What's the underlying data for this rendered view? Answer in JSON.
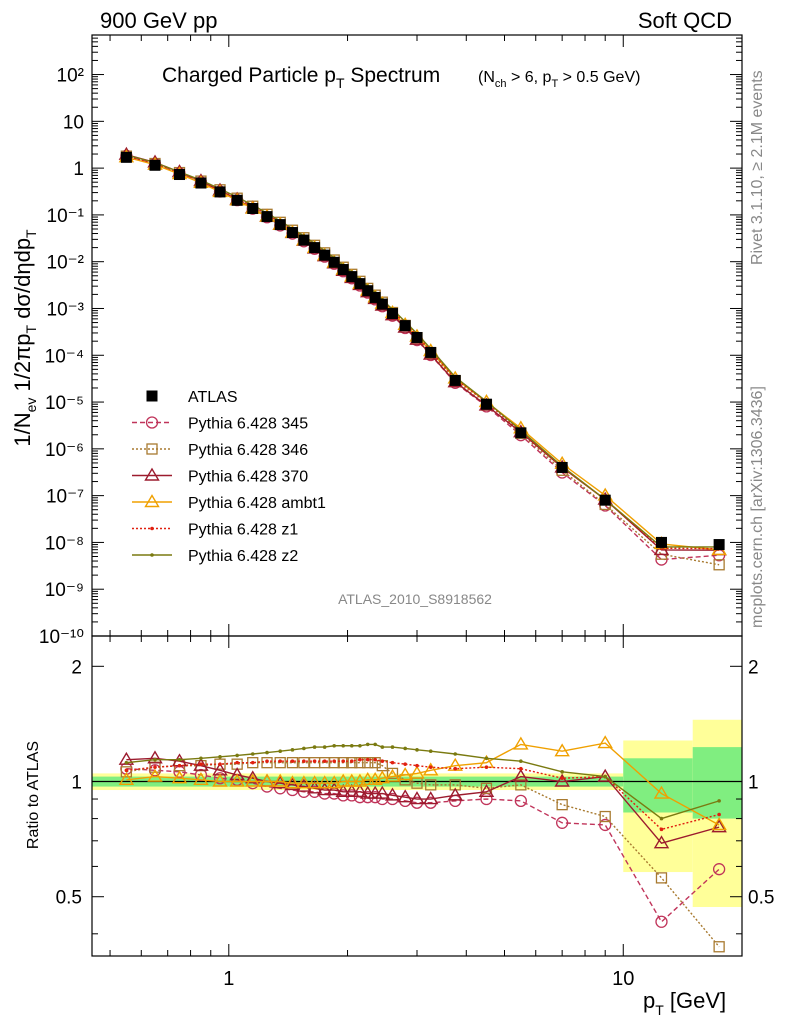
{
  "header": {
    "left": "900 GeV pp",
    "right": "Soft QCD"
  },
  "title": {
    "main_prefix": "Charged Particle p",
    "main_sub": "T",
    "main_suffix": " Spectrum",
    "cut_text": "(N",
    "cut_sub1": "ch",
    "cut_mid": " > 6, p",
    "cut_sub2": "T",
    "cut_end": " > 0.5 GeV)"
  },
  "side_labels": {
    "rivet": "Rivet 3.1.10, ≥ 2.1M events",
    "mcplots": "mcplots.cern.ch [arXiv:1306.3436]"
  },
  "watermark": "ATLAS_2010_S8918562",
  "axes": {
    "ylabel_top": "1/N_ev 1/2πp_T dσ/dηdp_T",
    "ylabel_bottom": "Ratio to ATLAS",
    "xlabel": "p_T  [GeV]",
    "x_ticks": [
      "1",
      "10"
    ],
    "y_ticks_top": [
      "10²",
      "10",
      "1",
      "10⁻¹",
      "10⁻²",
      "10⁻³",
      "10⁻⁴",
      "10⁻⁵",
      "10⁻⁶",
      "10⁻⁷",
      "10⁻⁸",
      "10⁻⁹",
      "10⁻¹⁰"
    ],
    "y_ticks_bottom": [
      "0.5",
      "1",
      "2"
    ]
  },
  "legend": [
    {
      "label": "ATLAS",
      "color": "#000000",
      "marker": "square-filled",
      "style": "none"
    },
    {
      "label": "Pythia 6.428 345",
      "color": "#c0345a",
      "marker": "circle",
      "style": "dashed"
    },
    {
      "label": "Pythia 6.428 346",
      "color": "#a87a30",
      "marker": "square",
      "style": "dotted"
    },
    {
      "label": "Pythia 6.428 370",
      "color": "#9c1b2e",
      "marker": "triangle",
      "style": "solid"
    },
    {
      "label": "Pythia 6.428 ambt1",
      "color": "#f0a000",
      "marker": "triangle",
      "style": "solid"
    },
    {
      "label": "Pythia 6.428 z1",
      "color": "#e02010",
      "marker": "dot",
      "style": "dotted"
    },
    {
      "label": "Pythia 6.428 z2",
      "color": "#7a7a10",
      "marker": "dot",
      "style": "solid"
    }
  ],
  "chart_data": {
    "type": "line",
    "x_scale": "log",
    "top_y_scale": "log",
    "xlim": [
      0.45,
      20
    ],
    "ylim_top": [
      1e-10,
      700
    ],
    "ylim_ratio": [
      0.35,
      2.4
    ],
    "x": [
      0.55,
      0.65,
      0.75,
      0.85,
      0.95,
      1.05,
      1.15,
      1.25,
      1.35,
      1.45,
      1.55,
      1.65,
      1.75,
      1.85,
      1.95,
      2.05,
      2.15,
      2.25,
      2.35,
      2.45,
      2.6,
      2.8,
      3.0,
      3.25,
      3.75,
      4.5,
      5.5,
      7.0,
      9.0,
      12.5,
      17.5
    ],
    "atlas_values": [
      1.7,
      1.15,
      0.73,
      0.48,
      0.31,
      0.205,
      0.137,
      0.092,
      0.062,
      0.042,
      0.029,
      0.02,
      0.0138,
      0.0097,
      0.0068,
      0.0048,
      0.0034,
      0.0024,
      0.00172,
      0.00124,
      0.00078,
      0.00043,
      0.00024,
      0.000115,
      2.9e-05,
      9e-06,
      2.2e-06,
      4e-07,
      8e-08,
      1e-08,
      9e-09
    ],
    "ratio_series": [
      {
        "name": "Pythia 6.428 345",
        "values": [
          1.08,
          1.07,
          1.06,
          1.04,
          1.02,
          1.01,
          0.99,
          0.97,
          0.96,
          0.95,
          0.94,
          0.94,
          0.93,
          0.93,
          0.92,
          0.92,
          0.91,
          0.91,
          0.91,
          0.9,
          0.9,
          0.89,
          0.88,
          0.88,
          0.89,
          0.9,
          0.89,
          0.78,
          0.77,
          0.43,
          0.59
        ]
      },
      {
        "name": "Pythia 6.428 346",
        "values": [
          1.06,
          1.09,
          1.1,
          1.1,
          1.11,
          1.11,
          1.12,
          1.12,
          1.12,
          1.12,
          1.12,
          1.12,
          1.12,
          1.12,
          1.12,
          1.12,
          1.12,
          1.12,
          1.12,
          1.1,
          1.05,
          1.01,
          0.99,
          0.98,
          0.98,
          0.96,
          0.98,
          0.87,
          0.81,
          0.56,
          0.37
        ]
      },
      {
        "name": "Pythia 6.428 370",
        "values": [
          1.14,
          1.15,
          1.13,
          1.1,
          1.07,
          1.04,
          1.02,
          1.0,
          0.99,
          0.98,
          0.97,
          0.96,
          0.95,
          0.95,
          0.94,
          0.94,
          0.94,
          0.93,
          0.93,
          0.93,
          0.92,
          0.91,
          0.9,
          0.9,
          0.92,
          0.94,
          1.03,
          1.0,
          1.03,
          0.69,
          0.76
        ]
      },
      {
        "name": "Pythia 6.428 ambt1",
        "values": [
          1.01,
          1.03,
          1.02,
          1.01,
          1.0,
          1.0,
          1.0,
          1.0,
          1.0,
          0.99,
          0.99,
          0.99,
          0.99,
          0.99,
          1.0,
          1.0,
          1.0,
          1.01,
          1.01,
          1.02,
          1.03,
          1.04,
          1.05,
          1.07,
          1.1,
          1.12,
          1.25,
          1.2,
          1.26,
          0.93,
          0.77
        ]
      },
      {
        "name": "Pythia 6.428 z1",
        "values": [
          1.07,
          1.09,
          1.1,
          1.11,
          1.11,
          1.12,
          1.12,
          1.13,
          1.13,
          1.13,
          1.13,
          1.13,
          1.13,
          1.13,
          1.13,
          1.13,
          1.14,
          1.14,
          1.14,
          1.13,
          1.12,
          1.11,
          1.1,
          1.09,
          1.08,
          1.09,
          1.08,
          1.02,
          1.03,
          0.75,
          0.82
        ]
      },
      {
        "name": "Pythia 6.428 z2",
        "values": [
          1.12,
          1.14,
          1.14,
          1.15,
          1.16,
          1.17,
          1.18,
          1.19,
          1.2,
          1.21,
          1.22,
          1.23,
          1.23,
          1.24,
          1.24,
          1.24,
          1.24,
          1.25,
          1.25,
          1.23,
          1.23,
          1.22,
          1.21,
          1.2,
          1.18,
          1.15,
          1.13,
          1.06,
          1.03,
          0.8,
          0.89
        ]
      }
    ],
    "atlas_error_bands": [
      {
        "x": [
          0.45,
          10
        ],
        "inner": [
          0.97,
          1.03
        ],
        "outer": [
          0.95,
          1.05
        ]
      },
      {
        "x": [
          10,
          15
        ],
        "inner": [
          0.83,
          1.15
        ],
        "outer": [
          0.58,
          1.28
        ]
      },
      {
        "x": [
          15,
          20
        ],
        "inner": [
          0.8,
          1.23
        ],
        "outer": [
          0.47,
          1.45
        ]
      }
    ]
  }
}
